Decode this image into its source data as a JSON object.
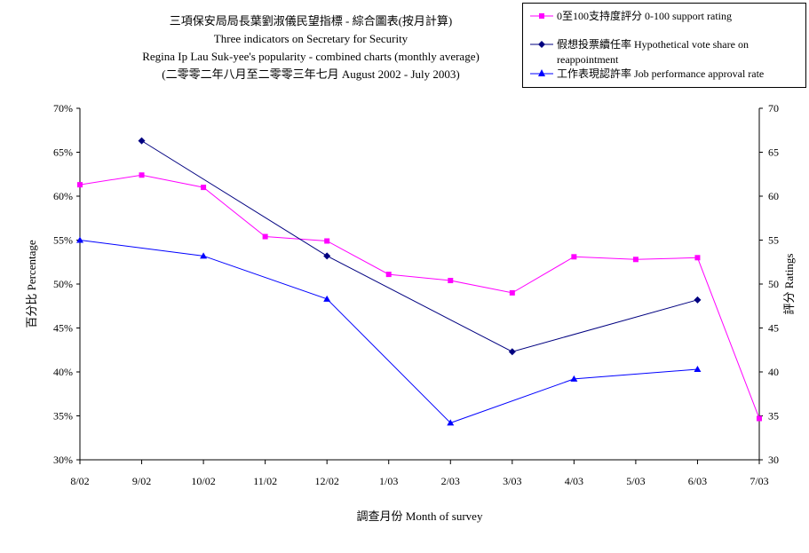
{
  "title_lines": [
    "三項保安局局長葉劉淑儀民望指標 - 綜合圖表(按月計算)",
    "Three indicators on Secretary for Security",
    "Regina Ip Lau Suk-yee's popularity - combined charts (monthly average)",
    "(二零零二年八月至二零零三年七月 August 2002 - July 2003)"
  ],
  "legend": [
    {
      "label": "0至100支持度評分 0-100 support rating",
      "color": "#ff00ff",
      "marker": "square"
    },
    {
      "label": "假想投票續任率 Hypothetical vote share on reappointment",
      "color": "#000080",
      "marker": "diamond"
    },
    {
      "label": "工作表現認許率 Job performance approval rate",
      "color": "#0000ff",
      "marker": "triangle"
    }
  ],
  "chart_data": {
    "type": "line",
    "xlabel": "調查月份 Month of survey",
    "ylabel": "百分比 Percentage",
    "y2label": "評分 Ratings",
    "ylim": [
      30,
      70
    ],
    "y_ticks": [
      "30%",
      "35%",
      "40%",
      "45%",
      "50%",
      "55%",
      "60%",
      "65%",
      "70%"
    ],
    "y2lim": [
      30,
      70
    ],
    "y2_ticks": [
      "30",
      "35",
      "40",
      "45",
      "50",
      "55",
      "60",
      "65",
      "70"
    ],
    "categories": [
      "8/02",
      "9/02",
      "10/02",
      "11/02",
      "12/02",
      "1/03",
      "2/03",
      "3/03",
      "4/03",
      "5/03",
      "6/03",
      "7/03"
    ],
    "grid": false,
    "legend_position": "top-right",
    "series": [
      {
        "name": "0至100支持度評分 0-100 support rating",
        "axis": "right",
        "color": "#ff00ff",
        "marker": "square",
        "values": [
          61.3,
          62.4,
          61.0,
          55.4,
          54.9,
          51.1,
          50.4,
          49.0,
          53.1,
          52.8,
          53.0,
          34.7
        ]
      },
      {
        "name": "假想投票續任率 Hypothetical vote share on reappointment",
        "axis": "left",
        "color": "#000080",
        "marker": "diamond",
        "values": [
          null,
          66.3,
          null,
          null,
          53.2,
          null,
          null,
          42.3,
          null,
          null,
          48.2,
          null
        ]
      },
      {
        "name": "工作表現認許率 Job performance approval rate",
        "axis": "left",
        "color": "#0000ff",
        "marker": "triangle",
        "values": [
          55.0,
          null,
          53.2,
          null,
          48.3,
          null,
          34.2,
          null,
          39.2,
          null,
          40.3,
          null
        ]
      }
    ]
  }
}
